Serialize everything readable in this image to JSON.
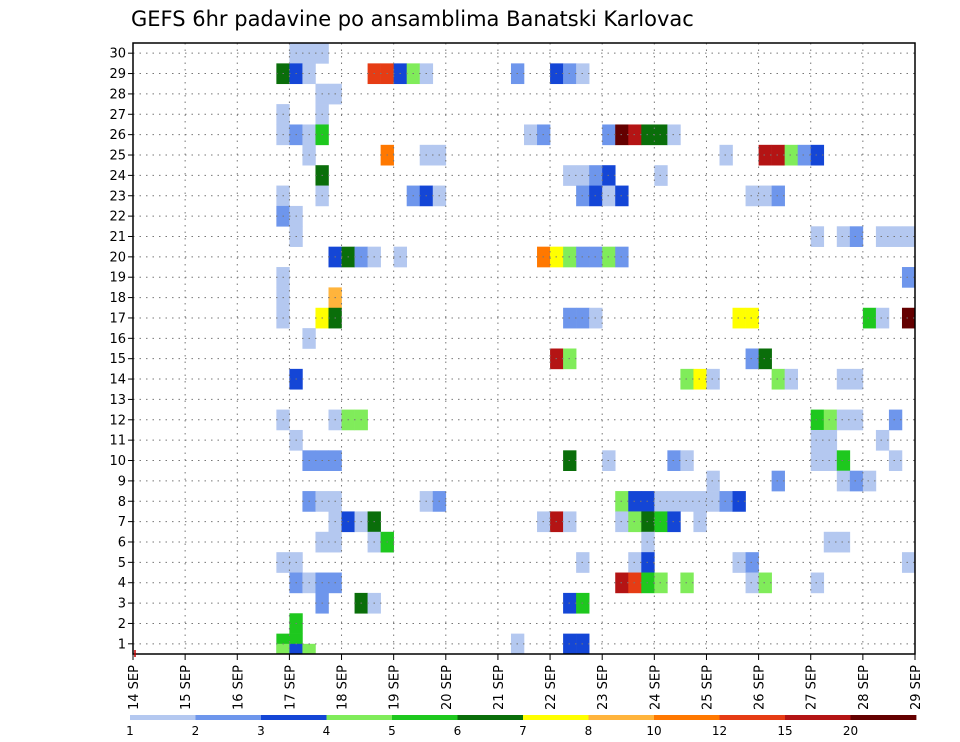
{
  "chart_data": {
    "type": "heatmap",
    "title": "GEFS 6hr padavine po ansamblima Banatski Karlovac",
    "x_ticks": [
      "14 SEP",
      "15 SEP",
      "16 SEP",
      "17 SEP",
      "18 SEP",
      "19 SEP",
      "20 SEP",
      "21 SEP",
      "22 SEP",
      "23 SEP",
      "24 SEP",
      "25 SEP",
      "26 SEP",
      "27 SEP",
      "28 SEP",
      "29 SEP"
    ],
    "y_ticks": [
      "1",
      "2",
      "3",
      "4",
      "5",
      "6",
      "7",
      "8",
      "9",
      "10",
      "11",
      "12",
      "13",
      "14",
      "15",
      "16",
      "17",
      "18",
      "19",
      "20",
      "21",
      "22",
      "23",
      "24",
      "25",
      "26",
      "27",
      "28",
      "29",
      "30"
    ],
    "xlim": [
      0,
      60
    ],
    "ylim": [
      0.5,
      30.5
    ],
    "x_unit": "6h steps from 14 SEP 00Z",
    "grid": true,
    "colorbar": {
      "labels": [
        "1",
        "2",
        "3",
        "4",
        "5",
        "6",
        "7",
        "8",
        "10",
        "12",
        "15",
        "20"
      ],
      "colors": [
        "#b4c8f0",
        "#6e96ec",
        "#1446d6",
        "#80ec5a",
        "#1ec81e",
        "#0a6e0a",
        "#ffff00",
        "#ffb43c",
        "#ff7800",
        "#e63c14",
        "#b41414",
        "#640000"
      ]
    },
    "cells": [
      [
        12,
        30,
        0
      ],
      [
        13,
        30,
        0
      ],
      [
        14,
        30,
        0
      ],
      [
        11,
        29,
        5
      ],
      [
        12,
        29,
        2
      ],
      [
        13,
        29,
        0
      ],
      [
        18,
        29,
        9
      ],
      [
        19,
        29,
        9
      ],
      [
        20,
        29,
        2
      ],
      [
        21,
        29,
        3
      ],
      [
        22,
        29,
        0
      ],
      [
        29,
        29,
        1
      ],
      [
        32,
        29,
        2
      ],
      [
        33,
        29,
        1
      ],
      [
        34,
        29,
        0
      ],
      [
        14,
        28,
        0
      ],
      [
        15,
        28,
        0
      ],
      [
        11,
        27,
        0
      ],
      [
        14,
        27,
        0
      ],
      [
        11,
        26,
        0
      ],
      [
        12,
        26,
        1
      ],
      [
        13,
        26,
        0
      ],
      [
        14,
        26,
        4
      ],
      [
        30,
        26,
        0
      ],
      [
        31,
        26,
        1
      ],
      [
        36,
        26,
        1
      ],
      [
        37,
        26,
        11
      ],
      [
        38,
        26,
        10
      ],
      [
        39,
        26,
        5
      ],
      [
        40,
        26,
        5
      ],
      [
        41,
        26,
        0
      ],
      [
        13,
        25,
        0
      ],
      [
        19,
        25,
        8
      ],
      [
        22,
        25,
        0
      ],
      [
        23,
        25,
        0
      ],
      [
        45,
        25,
        0
      ],
      [
        48,
        25,
        10
      ],
      [
        49,
        25,
        10
      ],
      [
        50,
        25,
        3
      ],
      [
        51,
        25,
        1
      ],
      [
        52,
        25,
        2
      ],
      [
        14,
        24,
        5
      ],
      [
        33,
        24,
        0
      ],
      [
        34,
        24,
        0
      ],
      [
        35,
        24,
        1
      ],
      [
        36,
        24,
        2
      ],
      [
        40,
        24,
        0
      ],
      [
        11,
        23,
        0
      ],
      [
        14,
        23,
        0
      ],
      [
        21,
        23,
        1
      ],
      [
        22,
        23,
        2
      ],
      [
        23,
        23,
        0
      ],
      [
        34,
        23,
        1
      ],
      [
        35,
        23,
        2
      ],
      [
        36,
        23,
        0
      ],
      [
        37,
        23,
        2
      ],
      [
        47,
        23,
        0
      ],
      [
        48,
        23,
        0
      ],
      [
        49,
        23,
        1
      ],
      [
        11,
        22,
        1
      ],
      [
        12,
        22,
        0
      ],
      [
        12,
        21,
        0
      ],
      [
        52,
        21,
        0
      ],
      [
        54,
        21,
        0
      ],
      [
        55,
        21,
        1
      ],
      [
        57,
        21,
        0
      ],
      [
        58,
        21,
        0
      ],
      [
        59,
        21,
        0
      ],
      [
        15,
        20,
        2
      ],
      [
        16,
        20,
        5
      ],
      [
        17,
        20,
        1
      ],
      [
        18,
        20,
        0
      ],
      [
        20,
        20,
        0
      ],
      [
        31,
        20,
        8
      ],
      [
        32,
        20,
        6
      ],
      [
        33,
        20,
        3
      ],
      [
        34,
        20,
        1
      ],
      [
        35,
        20,
        1
      ],
      [
        36,
        20,
        3
      ],
      [
        37,
        20,
        1
      ],
      [
        11,
        19,
        0
      ],
      [
        59,
        19,
        1
      ],
      [
        11,
        18,
        0
      ],
      [
        15,
        18,
        7
      ],
      [
        11,
        17,
        0
      ],
      [
        14,
        17,
        6
      ],
      [
        15,
        17,
        5
      ],
      [
        33,
        17,
        1
      ],
      [
        34,
        17,
        1
      ],
      [
        35,
        17,
        0
      ],
      [
        46,
        17,
        6
      ],
      [
        47,
        17,
        6
      ],
      [
        56,
        17,
        4
      ],
      [
        57,
        17,
        0
      ],
      [
        59,
        17,
        11
      ],
      [
        13,
        16,
        0
      ],
      [
        32,
        15,
        10
      ],
      [
        33,
        15,
        3
      ],
      [
        47,
        15,
        1
      ],
      [
        48,
        15,
        5
      ],
      [
        12,
        14,
        2
      ],
      [
        42,
        14,
        3
      ],
      [
        43,
        14,
        6
      ],
      [
        44,
        14,
        0
      ],
      [
        49,
        14,
        3
      ],
      [
        50,
        14,
        0
      ],
      [
        54,
        14,
        0
      ],
      [
        55,
        14,
        0
      ],
      [
        11,
        12,
        0
      ],
      [
        15,
        12,
        0
      ],
      [
        16,
        12,
        3
      ],
      [
        17,
        12,
        3
      ],
      [
        52,
        12,
        4
      ],
      [
        53,
        12,
        3
      ],
      [
        54,
        12,
        0
      ],
      [
        55,
        12,
        0
      ],
      [
        58,
        12,
        1
      ],
      [
        12,
        11,
        0
      ],
      [
        52,
        11,
        0
      ],
      [
        53,
        11,
        0
      ],
      [
        57,
        11,
        0
      ],
      [
        13,
        10,
        1
      ],
      [
        14,
        10,
        1
      ],
      [
        15,
        10,
        1
      ],
      [
        33,
        10,
        5
      ],
      [
        36,
        10,
        0
      ],
      [
        41,
        10,
        1
      ],
      [
        42,
        10,
        0
      ],
      [
        52,
        10,
        0
      ],
      [
        53,
        10,
        0
      ],
      [
        54,
        10,
        4
      ],
      [
        58,
        10,
        0
      ],
      [
        44,
        9,
        0
      ],
      [
        49,
        9,
        1
      ],
      [
        54,
        9,
        0
      ],
      [
        55,
        9,
        1
      ],
      [
        56,
        9,
        0
      ],
      [
        13,
        8,
        1
      ],
      [
        14,
        8,
        0
      ],
      [
        15,
        8,
        0
      ],
      [
        22,
        8,
        0
      ],
      [
        23,
        8,
        1
      ],
      [
        37,
        8,
        3
      ],
      [
        38,
        8,
        2
      ],
      [
        39,
        8,
        2
      ],
      [
        40,
        8,
        0
      ],
      [
        41,
        8,
        0
      ],
      [
        42,
        8,
        0
      ],
      [
        43,
        8,
        0
      ],
      [
        44,
        8,
        0
      ],
      [
        45,
        8,
        1
      ],
      [
        46,
        8,
        2
      ],
      [
        15,
        7,
        0
      ],
      [
        16,
        7,
        2
      ],
      [
        17,
        7,
        0
      ],
      [
        18,
        7,
        5
      ],
      [
        31,
        7,
        0
      ],
      [
        32,
        7,
        10
      ],
      [
        33,
        7,
        0
      ],
      [
        37,
        7,
        0
      ],
      [
        38,
        7,
        3
      ],
      [
        39,
        7,
        5
      ],
      [
        40,
        7,
        4
      ],
      [
        41,
        7,
        2
      ],
      [
        43,
        7,
        0
      ],
      [
        14,
        6,
        0
      ],
      [
        15,
        6,
        0
      ],
      [
        18,
        6,
        0
      ],
      [
        19,
        6,
        4
      ],
      [
        39,
        6,
        0
      ],
      [
        53,
        6,
        0
      ],
      [
        54,
        6,
        0
      ],
      [
        11,
        5,
        0
      ],
      [
        12,
        5,
        0
      ],
      [
        34,
        5,
        0
      ],
      [
        38,
        5,
        0
      ],
      [
        39,
        5,
        2
      ],
      [
        46,
        5,
        0
      ],
      [
        47,
        5,
        1
      ],
      [
        59,
        5,
        0
      ],
      [
        12,
        4,
        1
      ],
      [
        13,
        4,
        0
      ],
      [
        14,
        4,
        1
      ],
      [
        15,
        4,
        1
      ],
      [
        37,
        4,
        10
      ],
      [
        38,
        4,
        9
      ],
      [
        39,
        4,
        4
      ],
      [
        40,
        4,
        3
      ],
      [
        42,
        4,
        3
      ],
      [
        47,
        4,
        0
      ],
      [
        48,
        4,
        3
      ],
      [
        52,
        4,
        0
      ],
      [
        14,
        3,
        1
      ],
      [
        17,
        3,
        5
      ],
      [
        18,
        3,
        0
      ],
      [
        33,
        3,
        2
      ],
      [
        34,
        3,
        4
      ],
      [
        12,
        2,
        4
      ],
      [
        11,
        1,
        4
      ],
      [
        12,
        1,
        4
      ],
      [
        29,
        1,
        0
      ],
      [
        33,
        1,
        2
      ],
      [
        34,
        1,
        2
      ],
      [
        11,
        0.5,
        3
      ],
      [
        12,
        0.5,
        2
      ],
      [
        13,
        0.5,
        3
      ]
    ]
  }
}
